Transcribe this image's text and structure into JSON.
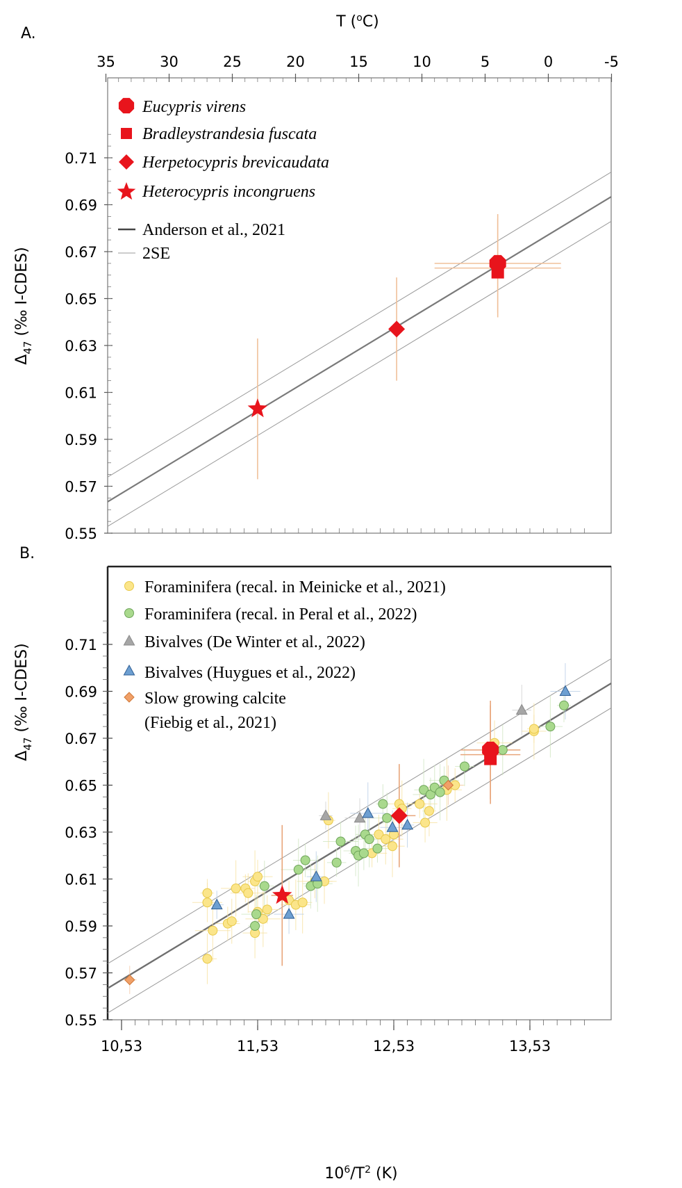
{
  "chart_data": [
    {
      "panel_label": "A.",
      "type": "scatter",
      "top_axis": {
        "label_parts": {
          "base": "T (",
          "sup": "o",
          "tail": "C)"
        },
        "ticks": [
          "35",
          "30",
          "25",
          "20",
          "15",
          "10",
          "5",
          "0",
          "-5"
        ]
      },
      "ylabel_parts": {
        "base": "Δ",
        "sub": "47",
        "tail": " (‰ I-CDES)"
      },
      "ylim": [
        0.55,
        0.72
      ],
      "y_ticks": [
        "0.71",
        "0.69",
        "0.67",
        "0.65",
        "0.63",
        "0.61",
        "0.59",
        "0.57",
        "0.55"
      ],
      "grid": false,
      "legend_position": "top-left",
      "legend": [
        {
          "label": "Eucypris virens",
          "marker": "octagon",
          "color": "#e8141c"
        },
        {
          "label": "Bradleystrandesia fuscata",
          "marker": "square",
          "color": "#e8141c"
        },
        {
          "label": "Herpetocypris brevicaudata",
          "marker": "diamond",
          "color": "#e8141c"
        },
        {
          "label": "Heterocypris incongruens",
          "marker": "star",
          "color": "#e8141c"
        },
        {
          "label": "Anderson et al., 2021",
          "marker": "line",
          "color": "#555555"
        },
        {
          "label": "2SE",
          "marker": "thin-line",
          "color": "#888888"
        }
      ],
      "series": [
        {
          "name": "Eucypris virens",
          "marker": "octagon",
          "points": [
            {
              "T": 4,
              "y": 0.665,
              "yerr": 0.021,
              "Terr": 5
            }
          ]
        },
        {
          "name": "Bradleystrandesia fuscata",
          "marker": "square",
          "points": [
            {
              "T": 4,
              "y": 0.663,
              "yerr": 0.021,
              "Terr": 5
            }
          ]
        },
        {
          "name": "Herpetocypris brevicaudata",
          "marker": "diamond",
          "points": [
            {
              "T": 12,
              "y": 0.637,
              "yerr": 0.022,
              "Terr": 0
            }
          ]
        },
        {
          "name": "Heterocypris incongruens",
          "marker": "star",
          "points": [
            {
              "T": 23,
              "y": 0.603,
              "yerr": 0.03,
              "Terr": 0
            }
          ]
        }
      ],
      "calibration": {
        "name": "Anderson et al., 2021",
        "x_at_left_edge": 10.53,
        "y_at_left_edge": 0.5634,
        "x_at_right_edge": 14.0,
        "y_at_right_edge": 0.6934,
        "se_offset": 0.0105
      }
    },
    {
      "panel_label": "B.",
      "type": "scatter",
      "xlabel_parts": {
        "base": "10",
        "sup": "6",
        "mid": "/T",
        "sup2": "2",
        "tail": " (K)"
      },
      "x_ticks": [
        "10,53",
        "11,53",
        "12,53",
        "13,53"
      ],
      "xlim": [
        10.43,
        14.03
      ],
      "ylabel_parts": {
        "base": "Δ",
        "sub": "47",
        "tail": " (‰ I-CDES)"
      },
      "ylim": [
        0.55,
        0.72
      ],
      "y_ticks": [
        "0.71",
        "0.69",
        "0.67",
        "0.65",
        "0.63",
        "0.61",
        "0.59",
        "0.57",
        "0.55"
      ],
      "grid": false,
      "legend_position": "top-left",
      "legend": [
        {
          "label": "Foraminifera (recal. in Meinicke et al., 2021)",
          "marker": "circle",
          "fill": "#fbe58a",
          "stroke": "#e8c94a"
        },
        {
          "label": "Foraminifera (recal. in Peral et al., 2022)",
          "marker": "circle",
          "fill": "#a9d98d",
          "stroke": "#6ea55a"
        },
        {
          "label": "Bivalves (De Winter et al., 2022)",
          "marker": "triangle",
          "fill": "#a6a6a6",
          "stroke": "#8a8a8a"
        },
        {
          "label": "Bivalves (Huygues et al., 2022)",
          "marker": "triangle",
          "fill": "#6d9fd1",
          "stroke": "#2f5f95"
        },
        {
          "label": "Slow growing calcite",
          "label2": "(Fiebig et al., 2021)",
          "marker": "diamond",
          "fill": "#f0a068",
          "stroke": "#d07838"
        }
      ],
      "series": [
        {
          "name": "Foraminifera (recal. in Meinicke et al., 2021)",
          "marker": "circle",
          "points": [
            [
              11.16,
              0.604
            ],
            [
              11.16,
              0.6
            ],
            [
              11.16,
              0.576
            ],
            [
              11.2,
              0.588
            ],
            [
              11.31,
              0.591
            ],
            [
              11.34,
              0.592
            ],
            [
              11.37,
              0.606
            ],
            [
              11.44,
              0.606
            ],
            [
              11.46,
              0.604
            ],
            [
              11.51,
              0.587
            ],
            [
              11.51,
              0.609
            ],
            [
              11.53,
              0.611
            ],
            [
              11.53,
              0.596
            ],
            [
              11.57,
              0.593
            ],
            [
              11.6,
              0.597
            ],
            [
              11.76,
              0.601
            ],
            [
              11.81,
              0.599
            ],
            [
              11.86,
              0.6
            ],
            [
              11.95,
              0.609
            ],
            [
              12.02,
              0.609
            ],
            [
              12.05,
              0.635
            ],
            [
              12.37,
              0.621
            ],
            [
              12.42,
              0.629
            ],
            [
              12.47,
              0.627
            ],
            [
              12.52,
              0.624
            ],
            [
              12.53,
              0.629
            ],
            [
              12.57,
              0.642
            ],
            [
              12.59,
              0.64
            ],
            [
              12.72,
              0.642
            ],
            [
              12.76,
              0.634
            ],
            [
              12.79,
              0.639
            ],
            [
              12.92,
              0.648
            ],
            [
              12.98,
              0.65
            ],
            [
              13.27,
              0.668
            ],
            [
              13.56,
              0.673
            ],
            [
              13.56,
              0.674
            ]
          ]
        },
        {
          "name": "Foraminifera (recal. in Peral et al., 2022)",
          "marker": "circle",
          "points": [
            [
              11.51,
              0.59
            ],
            [
              11.52,
              0.595
            ],
            [
              11.58,
              0.607
            ],
            [
              11.83,
              0.614
            ],
            [
              11.88,
              0.618
            ],
            [
              11.92,
              0.607
            ],
            [
              11.97,
              0.608
            ],
            [
              12.11,
              0.617
            ],
            [
              12.14,
              0.626
            ],
            [
              12.25,
              0.622
            ],
            [
              12.27,
              0.62
            ],
            [
              12.31,
              0.621
            ],
            [
              12.32,
              0.629
            ],
            [
              12.35,
              0.627
            ],
            [
              12.41,
              0.623
            ],
            [
              12.45,
              0.642
            ],
            [
              12.48,
              0.636
            ],
            [
              12.75,
              0.648
            ],
            [
              12.8,
              0.646
            ],
            [
              12.83,
              0.649
            ],
            [
              12.87,
              0.647
            ],
            [
              12.9,
              0.652
            ],
            [
              13.05,
              0.658
            ],
            [
              13.33,
              0.665
            ],
            [
              13.68,
              0.675
            ],
            [
              13.78,
              0.684
            ]
          ]
        },
        {
          "name": "Bivalves (De Winter et al., 2022)",
          "marker": "triangle",
          "points": [
            [
              12.03,
              0.637
            ],
            [
              12.28,
              0.636
            ],
            [
              13.47,
              0.682
            ]
          ]
        },
        {
          "name": "Bivalves (Huygues et al., 2022)",
          "marker": "triangle",
          "points": [
            [
              11.23,
              0.599
            ],
            [
              11.76,
              0.595
            ],
            [
              11.96,
              0.611
            ],
            [
              12.34,
              0.638
            ],
            [
              12.52,
              0.632
            ],
            [
              12.63,
              0.633
            ],
            [
              13.79,
              0.69
            ]
          ]
        },
        {
          "name": "Slow growing calcite (Fiebig et al., 2021)",
          "marker": "diamond",
          "points": [
            [
              10.59,
              0.567
            ],
            [
              12.93,
              0.65
            ]
          ]
        },
        {
          "name": "Eucypris virens",
          "marker": "octagon",
          "color": "#e8141c",
          "points": [
            [
              13.24,
              0.665
            ]
          ]
        },
        {
          "name": "Bradleystrandesia fuscata",
          "marker": "square",
          "color": "#e8141c",
          "points": [
            [
              13.24,
              0.663
            ]
          ]
        },
        {
          "name": "Herpetocypris brevicaudata",
          "marker": "diamond",
          "color": "#e8141c",
          "points": [
            [
              12.57,
              0.637
            ]
          ]
        },
        {
          "name": "Heterocypris incongruens",
          "marker": "star",
          "color": "#e8141c",
          "points": [
            [
              11.71,
              0.603
            ]
          ]
        }
      ],
      "calibration": {
        "name": "Anderson et al., 2021",
        "slope": 0.0391,
        "intercept": 0.154,
        "se_offset": 0.0105
      }
    }
  ]
}
